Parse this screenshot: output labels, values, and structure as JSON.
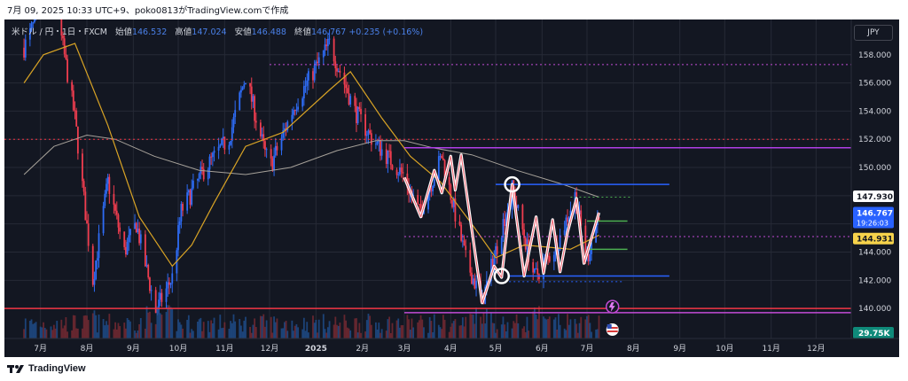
{
  "header": {
    "caption": "7月 09, 2025 10:33 UTC+9、poko0813がTradingView.comで作成"
  },
  "legend": {
    "symbol": "米ドル / 円・1日・FXCM",
    "open_label": "始値",
    "open": "146.532",
    "high_label": "高値",
    "high": "147.024",
    "low_label": "安値",
    "low": "146.488",
    "close_label": "終値",
    "close": "146.767",
    "change": "+0.235 (+0.16%)"
  },
  "currency_button": "JPY",
  "footer": {
    "brand": "TradingView"
  },
  "price_badges": [
    {
      "value": "147.930",
      "bg": "#ffffff",
      "fg": "#131722"
    },
    {
      "value": "146.767",
      "sub": "19:26:03",
      "bg": "#2962ff",
      "fg": "#ffffff"
    },
    {
      "value": "144.931",
      "bg": "#f7d34b",
      "fg": "#131722"
    }
  ],
  "volume_badge": {
    "value": "29.75K",
    "bg": "#0f8a7a",
    "fg": "#ffffff"
  },
  "colors": {
    "up": "#2e6cf6",
    "down": "#ef3d4f",
    "ma_short": "#d8a325",
    "ma_long": "#a7a29a",
    "grid": "#262a36"
  },
  "chart_data": {
    "type": "candlestick",
    "y_axis": {
      "ticks": [
        "158.000",
        "156.000",
        "154.000",
        "152.000",
        "150.000",
        "148.000",
        "146.000",
        "144.000",
        "142.000",
        "140.000"
      ],
      "range": [
        138.5,
        160.5
      ]
    },
    "x_axis": {
      "ticks": [
        "7月",
        "8月",
        "9月",
        "10月",
        "11月",
        "12月",
        "2025",
        "2月",
        "3月",
        "4月",
        "5月",
        "6月",
        "7月",
        "8月",
        "9月",
        "10月",
        "11月",
        "12月"
      ]
    },
    "ohlc_key_points": [
      [
        "2024-06-20",
        158.5
      ],
      [
        "2024-07-03",
        161.8
      ],
      [
        "2024-07-11",
        161.7
      ],
      [
        "2024-07-24",
        153.5
      ],
      [
        "2024-08-05",
        142.0
      ],
      [
        "2024-08-15",
        149.0
      ],
      [
        "2024-08-26",
        144.0
      ],
      [
        "2024-09-03",
        146.0
      ],
      [
        "2024-09-16",
        139.8
      ],
      [
        "2024-09-27",
        142.2
      ],
      [
        "2024-10-03",
        146.9
      ],
      [
        "2024-10-18",
        149.8
      ],
      [
        "2024-11-04",
        152.1
      ],
      [
        "2024-11-15",
        156.5
      ],
      [
        "2024-11-28",
        151.0
      ],
      [
        "2024-12-02",
        150.2
      ],
      [
        "2024-12-18",
        154.5
      ],
      [
        "2025-01-10",
        158.8
      ],
      [
        "2025-01-27",
        154.0
      ],
      [
        "2025-02-07",
        152.1
      ],
      [
        "2025-02-28",
        149.5
      ],
      [
        "2025-03-11",
        146.8
      ],
      [
        "2025-03-26",
        150.8
      ],
      [
        "2025-04-11",
        143.5
      ],
      [
        "2025-04-22",
        140.5
      ],
      [
        "2025-05-12",
        148.5
      ],
      [
        "2025-05-27",
        142.2
      ],
      [
        "2025-06-11",
        144.5
      ],
      [
        "2025-06-23",
        148.0
      ],
      [
        "2025-07-01",
        143.5
      ],
      [
        "2025-07-09",
        146.8
      ]
    ],
    "ma_short_points": [
      [
        "2024-06-20",
        156.0
      ],
      [
        "2024-07-03",
        158.0
      ],
      [
        "2024-07-24",
        158.8
      ],
      [
        "2024-08-15",
        153.0
      ],
      [
        "2024-09-05",
        146.5
      ],
      [
        "2024-09-27",
        143.0
      ],
      [
        "2024-10-10",
        144.5
      ],
      [
        "2024-10-25",
        147.5
      ],
      [
        "2024-11-15",
        151.5
      ],
      [
        "2024-12-10",
        152.5
      ],
      [
        "2025-01-10",
        155.5
      ],
      [
        "2025-01-24",
        156.8
      ],
      [
        "2025-02-14",
        153.5
      ],
      [
        "2025-03-05",
        150.8
      ],
      [
        "2025-03-25",
        149.0
      ],
      [
        "2025-04-15",
        146.0
      ],
      [
        "2025-05-01",
        143.6
      ],
      [
        "2025-05-20",
        144.5
      ],
      [
        "2025-06-20",
        144.2
      ],
      [
        "2025-07-09",
        145.2
      ]
    ],
    "ma_long_points": [
      [
        "2024-06-20",
        149.5
      ],
      [
        "2024-07-10",
        151.5
      ],
      [
        "2024-08-01",
        152.3
      ],
      [
        "2024-08-20",
        152.0
      ],
      [
        "2024-09-15",
        150.8
      ],
      [
        "2024-10-15",
        149.8
      ],
      [
        "2024-11-15",
        149.5
      ],
      [
        "2024-12-15",
        150.0
      ],
      [
        "2025-01-15",
        151.2
      ],
      [
        "2025-02-10",
        151.9
      ],
      [
        "2025-03-01",
        151.9
      ],
      [
        "2025-03-20",
        151.4
      ],
      [
        "2025-04-15",
        150.9
      ],
      [
        "2025-05-15",
        149.8
      ],
      [
        "2025-06-15",
        148.8
      ],
      [
        "2025-07-09",
        147.9
      ]
    ],
    "volume_badge": "29.75K",
    "annotations": {
      "hlines": [
        {
          "price": 157.3,
          "from": "2024-12-01",
          "to": "2025-12-31",
          "color": "#c24bd6",
          "style": "dotted"
        },
        {
          "price": 152.0,
          "from": "2024-06-01",
          "to": "2025-12-31",
          "color": "#f23645",
          "style": "dotted"
        },
        {
          "price": 151.4,
          "from": "2025-03-01",
          "to": "2025-12-31",
          "color": "#b03ee8",
          "style": "solid"
        },
        {
          "price": 148.8,
          "from": "2025-05-01",
          "to": "2025-08-25",
          "color": "#2962ff",
          "style": "solid"
        },
        {
          "price": 147.9,
          "from": "2025-06-20",
          "to": "2025-07-31",
          "color": "#4caf50",
          "style": "dotted"
        },
        {
          "price": 146.2,
          "from": "2025-07-01",
          "to": "2025-07-28",
          "color": "#4caf50",
          "style": "solid"
        },
        {
          "price": 145.1,
          "from": "2025-03-01",
          "to": "2025-12-31",
          "color": "#c24bd6",
          "style": "dotted"
        },
        {
          "price": 144.2,
          "from": "2025-07-01",
          "to": "2025-07-28",
          "color": "#4caf50",
          "style": "solid"
        },
        {
          "price": 142.3,
          "from": "2025-05-10",
          "to": "2025-08-25",
          "color": "#2962ff",
          "style": "solid"
        },
        {
          "price": 141.9,
          "from": "2025-05-10",
          "to": "2025-07-25",
          "color": "#2962ff",
          "style": "dotted"
        },
        {
          "price": 140.0,
          "from": "2024-06-01",
          "to": "2025-12-31",
          "color": "#f23645",
          "style": "solid"
        },
        {
          "price": 139.7,
          "from": "2025-03-01",
          "to": "2025-12-31",
          "color": "#c24bd6",
          "style": "solid"
        }
      ],
      "zigzag": [
        [
          "2025-03-01",
          149.3
        ],
        [
          "2025-03-12",
          146.5
        ],
        [
          "2025-03-21",
          149.8
        ],
        [
          "2025-03-26",
          148.2
        ],
        [
          "2025-04-01",
          150.8
        ],
        [
          "2025-04-04",
          148.4
        ],
        [
          "2025-04-08",
          150.9
        ],
        [
          "2025-04-22",
          140.4
        ],
        [
          "2025-04-30",
          143.0
        ],
        [
          "2025-05-05",
          142.2
        ],
        [
          "2025-05-12",
          148.8
        ],
        [
          "2025-05-20",
          142.3
        ],
        [
          "2025-05-28",
          146.5
        ],
        [
          "2025-06-02",
          142.5
        ],
        [
          "2025-06-08",
          146.3
        ],
        [
          "2025-06-13",
          142.6
        ],
        [
          "2025-06-18",
          145.4
        ],
        [
          "2025-06-24",
          147.8
        ],
        [
          "2025-06-29",
          143.2
        ],
        [
          "2025-07-09",
          146.8
        ]
      ],
      "circles": [
        [
          "2025-05-12",
          148.8
        ],
        [
          "2025-05-05",
          142.3
        ]
      ]
    }
  }
}
